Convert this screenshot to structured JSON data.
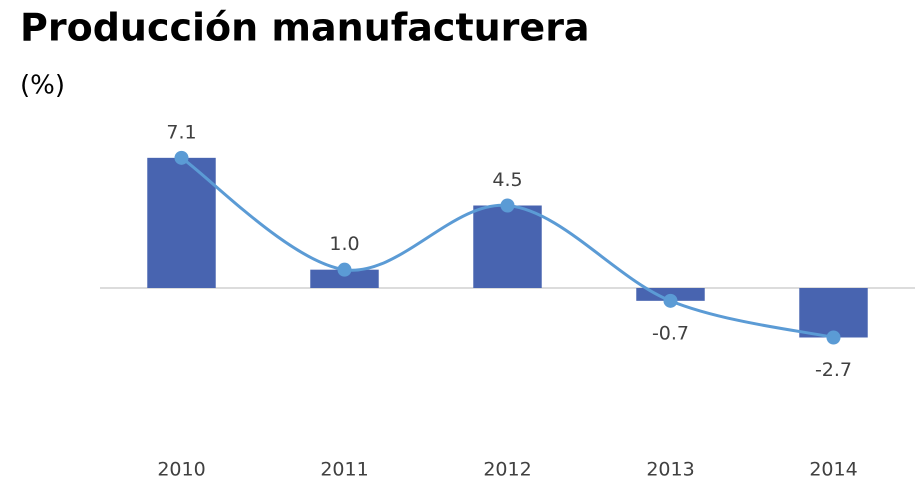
{
  "chart_data": {
    "type": "bar",
    "title": "Producción manufacturera",
    "subtitle": "(%)",
    "categories": [
      "2010",
      "2011",
      "2012",
      "2013",
      "2014"
    ],
    "values": [
      7.1,
      1.0,
      4.5,
      -0.7,
      -2.7
    ],
    "value_labels": [
      "7.1",
      "1.0",
      "4.5",
      "-0.7",
      "-2.7"
    ],
    "color": "#4864b0",
    "line_color": "#5b9bd5",
    "ylim": [
      -6,
      9
    ]
  }
}
